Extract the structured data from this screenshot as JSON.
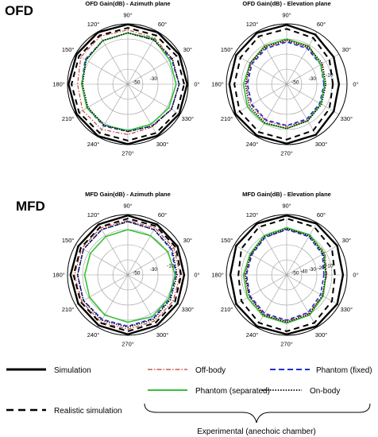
{
  "row_labels": [
    "OFD",
    "MFD"
  ],
  "legend": {
    "simulation": "Simulation",
    "realistic": "Realistic simulation",
    "off_body": "Off-body",
    "phantom_fixed": "Phantom (fixed)",
    "phantom_separated": "Phantom (separated)",
    "on_body": "On-body",
    "group_label": "Experimental (anechoic chamber)"
  },
  "colors": {
    "simulation": "#000000",
    "realistic": "#000000",
    "off_body": "#c0392b",
    "phantom_fixed": "#1f2fd1",
    "phantom_separated": "#35c035",
    "on_body": "#000000",
    "grid": "#9a9a9a"
  },
  "chart_data": [
    {
      "type": "polar",
      "title": "OFD Gain(dB) - Azimuth plane",
      "angle_labels": [
        "90°",
        "60°",
        "30°",
        "0°",
        "330°",
        "300°",
        "270°",
        "240°",
        "210°",
        "180°",
        "150°",
        "120°"
      ],
      "radial_labels": [
        "-50",
        "-30"
      ],
      "r_range": [
        -60,
        0
      ],
      "series": [
        {
          "key": "simulation",
          "angles": [
            0,
            30,
            60,
            90,
            120,
            150,
            180,
            210,
            240,
            270,
            300,
            330
          ],
          "values": [
            -1,
            -1,
            -0.5,
            -0.5,
            -0.5,
            -1,
            -1,
            -1,
            -0.5,
            -0.5,
            -1,
            -1
          ]
        },
        {
          "key": "realistic",
          "angles": [
            0,
            30,
            60,
            90,
            120,
            150,
            180,
            210,
            240,
            270,
            300,
            330
          ],
          "values": [
            -4,
            -4,
            -4,
            -4,
            -4,
            -4,
            -4,
            -4,
            -4,
            -4,
            -4,
            -4
          ]
        },
        {
          "key": "off_body",
          "angles": [
            0,
            30,
            60,
            90,
            120,
            150,
            180,
            210,
            240,
            270,
            300,
            330
          ],
          "values": [
            -9,
            -9,
            -7,
            -6,
            -5,
            -6,
            -10,
            -8,
            -8,
            -10,
            -11,
            -10
          ]
        },
        {
          "key": "phantom_fixed",
          "angles": [
            0,
            30,
            60,
            90,
            120,
            150,
            180,
            210,
            240,
            270,
            300,
            330
          ],
          "values": [
            -9,
            -10,
            -9,
            -9,
            -10,
            -11,
            -14,
            -13,
            -12,
            -13,
            -12,
            -10
          ]
        },
        {
          "key": "phantom_separated",
          "angles": [
            0,
            30,
            60,
            90,
            120,
            150,
            180,
            210,
            240,
            270,
            300,
            330
          ],
          "values": [
            -12,
            -12,
            -8,
            -9,
            -10,
            -12,
            -14,
            -13,
            -13,
            -14,
            -14,
            -13
          ]
        },
        {
          "key": "on_body",
          "angles": [
            0,
            30,
            60,
            90,
            120,
            150,
            180,
            210,
            240,
            270,
            300,
            330
          ],
          "values": [
            -9,
            -9,
            -9,
            -9,
            -10,
            -12,
            -15,
            -14,
            -13,
            -13,
            -12,
            -10
          ]
        }
      ]
    },
    {
      "type": "polar",
      "title": "OFD Gain(dB) - Elevation plane",
      "angle_labels": [
        "90°",
        "60°",
        "30°",
        "0°",
        "330°",
        "300°",
        "270°",
        "240°",
        "210°",
        "180°",
        "150°",
        "120°"
      ],
      "radial_labels": [
        "-50",
        "-30",
        "-10"
      ],
      "r_range": [
        -60,
        0
      ],
      "series": [
        {
          "key": "simulation",
          "angles": [
            0,
            30,
            60,
            90,
            120,
            150,
            180,
            210,
            240,
            270,
            300,
            330
          ],
          "values": [
            -8,
            -6,
            -3,
            -1,
            -1,
            -2,
            -3,
            -1,
            -1,
            -1,
            -2,
            -6
          ]
        },
        {
          "key": "realistic",
          "angles": [
            0,
            30,
            60,
            90,
            120,
            150,
            180,
            210,
            240,
            270,
            300,
            330
          ],
          "values": [
            -14,
            -11,
            -7,
            -5,
            -5,
            -7,
            -8,
            -6,
            -5,
            -5,
            -7,
            -11
          ]
        },
        {
          "key": "off_body",
          "angles": [
            0,
            30,
            60,
            90,
            120,
            150,
            180,
            210,
            240,
            270,
            300,
            330
          ],
          "values": [
            -22,
            -20,
            -18,
            -17,
            -18,
            -19,
            -20,
            -19,
            -18,
            -18,
            -19,
            -21
          ]
        },
        {
          "key": "phantom_fixed",
          "angles": [
            0,
            30,
            60,
            90,
            120,
            150,
            180,
            210,
            240,
            270,
            300,
            330
          ],
          "values": [
            -23,
            -21,
            -19,
            -18,
            -19,
            -20,
            -21,
            -20,
            -19,
            -19,
            -20,
            -22
          ]
        },
        {
          "key": "phantom_separated",
          "angles": [
            0,
            30,
            60,
            90,
            120,
            150,
            180,
            210,
            240,
            270,
            300,
            330
          ],
          "values": [
            -22,
            -21,
            -16,
            -15,
            -16,
            -18,
            -17,
            -15,
            -15,
            -16,
            -18,
            -21
          ]
        },
        {
          "key": "on_body",
          "angles": [
            0,
            30,
            60,
            90,
            120,
            150,
            180,
            210,
            240,
            270,
            300,
            330
          ],
          "values": [
            -21,
            -19,
            -17,
            -16,
            -17,
            -18,
            -19,
            -17,
            -16,
            -16,
            -18,
            -20
          ]
        }
      ]
    },
    {
      "type": "polar",
      "title": "MFD Gain(dB) - Azimuth plane",
      "angle_labels": [
        "90°",
        "60°",
        "30°",
        "0°",
        "330°",
        "300°",
        "270°",
        "240°",
        "210°",
        "180°",
        "150°",
        "120°"
      ],
      "radial_labels": [
        "-50",
        "-30",
        "-10"
      ],
      "r_range": [
        -60,
        0
      ],
      "series": [
        {
          "key": "simulation",
          "angles": [
            0,
            30,
            60,
            90,
            120,
            150,
            180,
            210,
            240,
            270,
            300,
            330
          ],
          "values": [
            -4,
            -3,
            -2,
            -1,
            -2,
            -3,
            -3,
            -3,
            -2,
            -1,
            -2,
            -3
          ]
        },
        {
          "key": "realistic",
          "angles": [
            0,
            30,
            60,
            90,
            120,
            150,
            180,
            210,
            240,
            270,
            300,
            330
          ],
          "values": [
            -7,
            -5,
            -4,
            -4,
            -5,
            -6,
            -6,
            -6,
            -5,
            -4,
            -5,
            -6
          ]
        },
        {
          "key": "off_body",
          "angles": [
            0,
            30,
            60,
            90,
            120,
            150,
            180,
            210,
            240,
            270,
            300,
            330
          ],
          "values": [
            -8,
            -7,
            -6,
            -6,
            -6,
            -7,
            -7,
            -7,
            -6,
            -6,
            -7,
            -8
          ]
        },
        {
          "key": "phantom_fixed",
          "angles": [
            0,
            30,
            60,
            90,
            120,
            150,
            180,
            210,
            240,
            270,
            300,
            330
          ],
          "values": [
            -12,
            -10,
            -8,
            -7,
            -8,
            -9,
            -10,
            -9,
            -9,
            -9,
            -10,
            -12
          ]
        },
        {
          "key": "phantom_separated",
          "angles": [
            0,
            30,
            60,
            90,
            120,
            150,
            180,
            210,
            240,
            270,
            300,
            330
          ],
          "values": [
            -13,
            -14,
            -15,
            -15,
            -16,
            -17,
            -17,
            -16,
            -14,
            -13,
            -12,
            -13
          ]
        },
        {
          "key": "on_body",
          "angles": [
            0,
            30,
            60,
            90,
            120,
            150,
            180,
            210,
            240,
            270,
            300,
            330
          ],
          "values": [
            -11,
            -9,
            -8,
            -7,
            -8,
            -9,
            -10,
            -9,
            -8,
            -8,
            -9,
            -11
          ]
        }
      ]
    },
    {
      "type": "polar",
      "title": "MFD Gain(dB) - Elevation plane",
      "angle_labels": [
        "90°",
        "60°",
        "30°",
        "0°",
        "330°",
        "300°",
        "270°",
        "240°",
        "210°",
        "180°",
        "150°",
        "120°"
      ],
      "radial_labels": [
        "-50",
        "-40",
        "-30",
        "-20",
        "-10"
      ],
      "r_range": [
        -60,
        0
      ],
      "series": [
        {
          "key": "simulation",
          "angles": [
            0,
            30,
            60,
            90,
            120,
            150,
            180,
            210,
            240,
            270,
            300,
            330
          ],
          "values": [
            -4,
            -2,
            -1,
            -1,
            -1,
            -2,
            -4,
            -2,
            -1,
            -1,
            -1,
            -2
          ]
        },
        {
          "key": "realistic",
          "angles": [
            0,
            30,
            60,
            90,
            120,
            150,
            180,
            210,
            240,
            270,
            300,
            330
          ],
          "values": [
            -12,
            -8,
            -5,
            -4,
            -5,
            -8,
            -12,
            -8,
            -5,
            -4,
            -5,
            -8
          ]
        },
        {
          "key": "off_body",
          "angles": [
            0,
            30,
            60,
            90,
            120,
            150,
            180,
            210,
            240,
            270,
            300,
            330
          ],
          "values": [
            -20,
            -16,
            -14,
            -15,
            -17,
            -19,
            -18,
            -17,
            -15,
            -14,
            -16,
            -19
          ]
        },
        {
          "key": "phantom_fixed",
          "angles": [
            0,
            30,
            60,
            90,
            120,
            150,
            180,
            210,
            240,
            270,
            300,
            330
          ],
          "values": [
            -23,
            -19,
            -16,
            -15,
            -17,
            -20,
            -20,
            -18,
            -16,
            -15,
            -17,
            -21
          ]
        },
        {
          "key": "phantom_separated",
          "angles": [
            0,
            30,
            60,
            90,
            120,
            150,
            180,
            210,
            240,
            270,
            300,
            330
          ],
          "values": [
            -21,
            -17,
            -14,
            -13,
            -15,
            -18,
            -17,
            -15,
            -13,
            -12,
            -14,
            -18
          ]
        },
        {
          "key": "on_body",
          "angles": [
            0,
            30,
            60,
            90,
            120,
            150,
            180,
            210,
            240,
            270,
            300,
            330
          ],
          "values": [
            -21,
            -18,
            -15,
            -14,
            -16,
            -19,
            -19,
            -17,
            -14,
            -13,
            -15,
            -19
          ]
        }
      ]
    }
  ]
}
